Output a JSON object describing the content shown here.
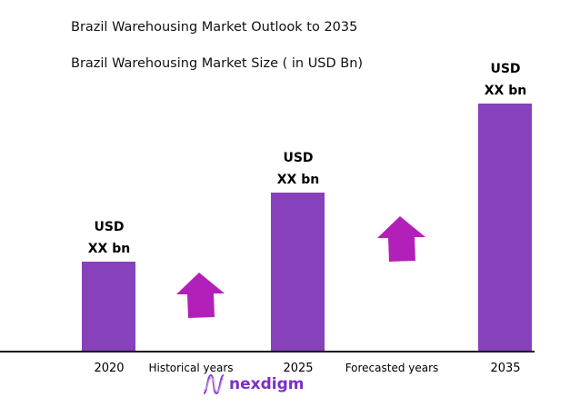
{
  "chart_data": {
    "type": "bar",
    "title": "Brazil Warehousing Market Outlook to 2035",
    "subtitle": "Brazil Warehousing Market Size ( in USD Bn)",
    "categories": [
      "2020",
      "2025",
      "2035"
    ],
    "data_labels": [
      {
        "line1": "USD",
        "line2": "XX bn"
      },
      {
        "line1": "USD",
        "line2": "XX bn"
      },
      {
        "line1": "USD",
        "line2": "XX bn"
      }
    ],
    "periods": [
      "Historical years",
      "Forecasted years"
    ],
    "bar_color": "#8741bb",
    "arrow_color": "#b31fb9",
    "grid": false
  },
  "logo": {
    "text": "nexdigm"
  }
}
